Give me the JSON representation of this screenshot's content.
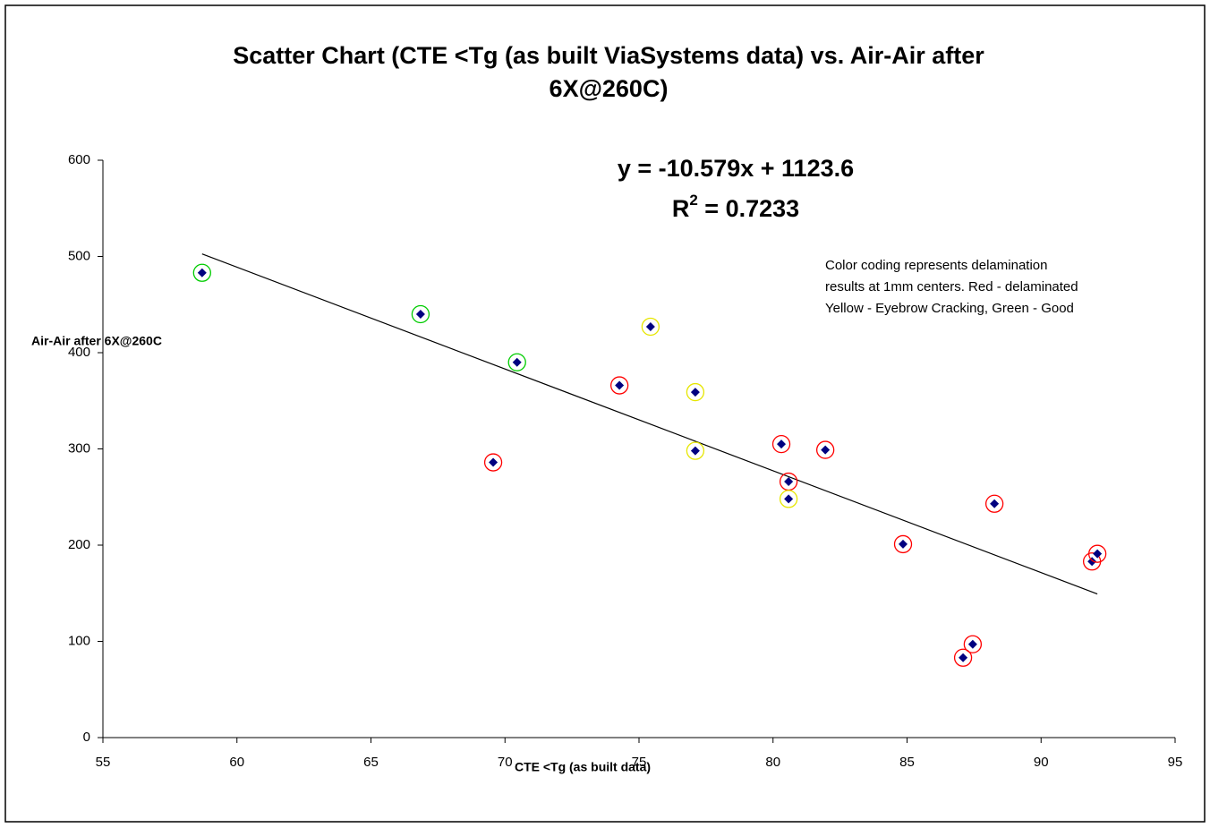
{
  "chart_data": {
    "type": "scatter",
    "title": [
      "Scatter Chart (CTE <Tg (as built ViaSystems data) vs. Air-Air after",
      "6X@260C)"
    ],
    "x_label": "CTE <Tg (as built data)",
    "y_label": "Air-Air after 6X@260C",
    "xlim": [
      55,
      95
    ],
    "xticks": [
      55,
      60,
      65,
      70,
      75,
      80,
      85,
      90,
      95
    ],
    "ylim": [
      0,
      600
    ],
    "yticks": [
      0,
      100,
      200,
      300,
      400,
      500,
      600
    ],
    "grid": false,
    "series": [
      {
        "color": "#000080",
        "x": [
          58.7,
          66.85,
          70.45,
          75.43,
          74.27,
          77.1,
          77.1,
          69.56,
          80.31,
          81.95,
          80.58,
          80.58,
          84.85,
          88.26,
          87.45,
          87.09,
          91.9,
          92.1
        ],
        "values": [
          483,
          440,
          390,
          427,
          366,
          359,
          298,
          286,
          305,
          299,
          266,
          248,
          201,
          243,
          97,
          83,
          183,
          191
        ],
        "ring_colors": [
          "#00cc00",
          "#00cc00",
          "#00cc00",
          "#e6e600",
          "#ff0000",
          "#e6e600",
          "#e6e600",
          "#ff0000",
          "#ff0000",
          "#ff0000",
          "#ff0000",
          "#e6e600",
          "#ff0000",
          "#ff0000",
          "#ff0000",
          "#ff0000",
          "#ff0000",
          "#ff0000"
        ]
      }
    ],
    "trendline": {
      "equation": "y = -10.579x + 1123.6",
      "slope": -10.579,
      "intercept": 1123.6,
      "r2": {
        "base": "R",
        "sup": "2",
        "rest": " = 0.7233"
      },
      "color": "#000000"
    },
    "annotation": [
      "Color coding represents delamination",
      "results at 1mm centers. Red - delaminated",
      "Yellow - Eyebrow Cracking, Green - Good"
    ]
  }
}
